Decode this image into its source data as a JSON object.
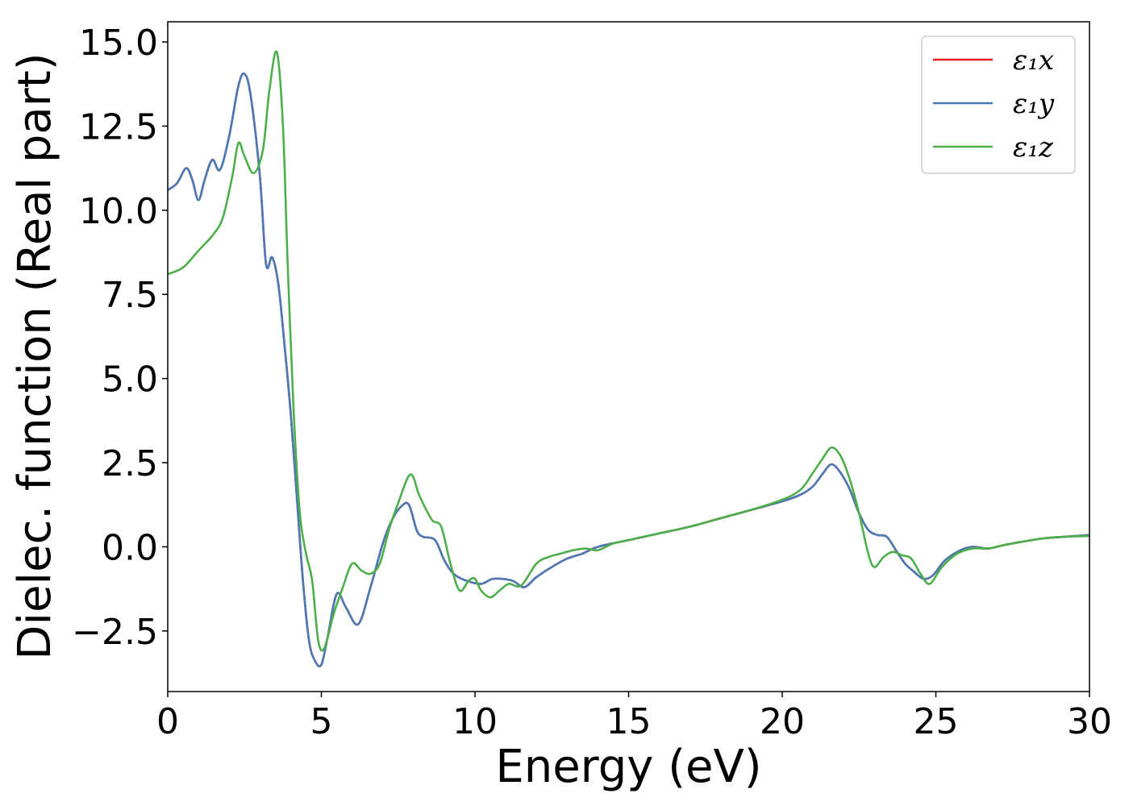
{
  "chart_data": {
    "type": "line",
    "xlabel": "Energy (eV)",
    "ylabel": "Dielec. function (Real part)",
    "xlim": [
      0,
      30
    ],
    "ylim": [
      -4.3,
      15.6
    ],
    "x_ticks": [
      0,
      5,
      10,
      15,
      20,
      25,
      30
    ],
    "y_ticks": [
      -2.5,
      0.0,
      2.5,
      5.0,
      7.5,
      10.0,
      12.5,
      15.0
    ],
    "x_tick_labels": [
      "0",
      "5",
      "10",
      "15",
      "20",
      "25",
      "30"
    ],
    "y_tick_labels": [
      "−2.5",
      "0.0",
      "2.5",
      "5.0",
      "7.5",
      "10.0",
      "12.5",
      "15.0"
    ],
    "grid": false,
    "legend_position": "top-right",
    "series": [
      {
        "name": "ε₁x",
        "color": "#e41a1c",
        "x": [
          0,
          0.3,
          0.6,
          0.8,
          1.0,
          1.2,
          1.45,
          1.7,
          2.0,
          2.3,
          2.5,
          2.7,
          3.0,
          3.2,
          3.4,
          3.6,
          3.8,
          4.0,
          4.2,
          4.4,
          4.6,
          4.8,
          5.0,
          5.2,
          5.5,
          5.8,
          6.2,
          6.6,
          7.0,
          7.3,
          7.6,
          7.85,
          8.1,
          8.3,
          8.7,
          9.0,
          9.3,
          9.7,
          10.2,
          10.6,
          11.2,
          11.6,
          12.0,
          12.5,
          13.0,
          13.5,
          14.0,
          15.0,
          16.0,
          17.0,
          18.0,
          19.0,
          20.0,
          20.6,
          21.0,
          21.3,
          21.6,
          21.9,
          22.2,
          22.5,
          22.8,
          23.1,
          23.4,
          23.7,
          24.0,
          24.3,
          24.6,
          24.9,
          25.3,
          25.8,
          26.2,
          26.7,
          27.2,
          27.8,
          28.5,
          29.2,
          30.0
        ],
        "y": [
          10.6,
          10.8,
          11.25,
          10.9,
          10.3,
          10.9,
          11.5,
          11.2,
          12.2,
          13.7,
          14.05,
          13.4,
          11.0,
          8.4,
          8.6,
          7.8,
          6.0,
          4.0,
          1.5,
          -1.0,
          -2.8,
          -3.4,
          -3.5,
          -2.7,
          -1.4,
          -1.8,
          -2.3,
          -1.2,
          0.1,
          0.8,
          1.2,
          1.25,
          0.5,
          0.3,
          0.2,
          -0.4,
          -0.8,
          -1.0,
          -1.1,
          -0.95,
          -1.0,
          -1.2,
          -0.9,
          -0.6,
          -0.35,
          -0.2,
          0.0,
          0.2,
          0.4,
          0.6,
          0.85,
          1.1,
          1.35,
          1.55,
          1.8,
          2.15,
          2.45,
          2.2,
          1.7,
          1.0,
          0.5,
          0.35,
          0.3,
          -0.1,
          -0.5,
          -0.75,
          -0.95,
          -0.85,
          -0.4,
          -0.1,
          0.0,
          -0.05,
          0.05,
          0.15,
          0.25,
          0.3,
          0.35
        ]
      },
      {
        "name": "ε₁y",
        "color": "#4a7ab5",
        "x": [
          0,
          0.3,
          0.6,
          0.8,
          1.0,
          1.2,
          1.45,
          1.7,
          2.0,
          2.3,
          2.5,
          2.7,
          3.0,
          3.2,
          3.4,
          3.6,
          3.8,
          4.0,
          4.2,
          4.4,
          4.6,
          4.8,
          5.0,
          5.2,
          5.5,
          5.8,
          6.2,
          6.6,
          7.0,
          7.3,
          7.6,
          7.85,
          8.1,
          8.3,
          8.7,
          9.0,
          9.3,
          9.7,
          10.2,
          10.6,
          11.2,
          11.6,
          12.0,
          12.5,
          13.0,
          13.5,
          14.0,
          15.0,
          16.0,
          17.0,
          18.0,
          19.0,
          20.0,
          20.6,
          21.0,
          21.3,
          21.6,
          21.9,
          22.2,
          22.5,
          22.8,
          23.1,
          23.4,
          23.7,
          24.0,
          24.3,
          24.6,
          24.9,
          25.3,
          25.8,
          26.2,
          26.7,
          27.2,
          27.8,
          28.5,
          29.2,
          30.0
        ],
        "y": [
          10.6,
          10.8,
          11.25,
          10.9,
          10.3,
          10.9,
          11.5,
          11.2,
          12.2,
          13.7,
          14.05,
          13.4,
          11.0,
          8.4,
          8.6,
          7.8,
          6.0,
          4.0,
          1.5,
          -1.0,
          -2.8,
          -3.4,
          -3.5,
          -2.7,
          -1.4,
          -1.8,
          -2.3,
          -1.2,
          0.1,
          0.8,
          1.2,
          1.25,
          0.5,
          0.3,
          0.2,
          -0.4,
          -0.8,
          -1.0,
          -1.1,
          -0.95,
          -1.0,
          -1.2,
          -0.9,
          -0.6,
          -0.35,
          -0.2,
          0.0,
          0.2,
          0.4,
          0.6,
          0.85,
          1.1,
          1.35,
          1.55,
          1.8,
          2.15,
          2.45,
          2.2,
          1.7,
          1.0,
          0.5,
          0.35,
          0.3,
          -0.1,
          -0.5,
          -0.75,
          -0.95,
          -0.85,
          -0.4,
          -0.1,
          0.0,
          -0.05,
          0.05,
          0.15,
          0.25,
          0.3,
          0.35
        ]
      },
      {
        "name": "ε₁z",
        "color": "#4daf4a",
        "x": [
          0,
          0.5,
          1.0,
          1.5,
          1.8,
          2.1,
          2.3,
          2.5,
          2.8,
          3.1,
          3.3,
          3.55,
          3.75,
          3.9,
          4.1,
          4.3,
          4.5,
          4.7,
          4.9,
          5.1,
          5.4,
          5.7,
          6.0,
          6.3,
          6.6,
          6.9,
          7.2,
          7.5,
          7.9,
          8.2,
          8.6,
          8.9,
          9.2,
          9.5,
          9.8,
          10.0,
          10.2,
          10.5,
          10.8,
          11.1,
          11.5,
          12.0,
          12.4,
          12.8,
          13.2,
          13.6,
          14.0,
          14.5,
          15.0,
          16.0,
          17.0,
          18.0,
          19.0,
          20.0,
          20.6,
          21.0,
          21.3,
          21.6,
          21.9,
          22.2,
          22.5,
          22.8,
          23.0,
          23.3,
          23.6,
          23.9,
          24.2,
          24.5,
          24.8,
          25.2,
          25.7,
          26.2,
          26.7,
          27.2,
          27.8,
          28.5,
          29.2,
          30.0
        ],
        "y": [
          8.1,
          8.3,
          8.8,
          9.3,
          9.8,
          11.0,
          12.0,
          11.6,
          11.1,
          11.8,
          13.5,
          14.7,
          12.5,
          8.5,
          4.0,
          1.0,
          -0.2,
          -1.0,
          -2.8,
          -3.0,
          -2.0,
          -1.2,
          -0.5,
          -0.7,
          -0.8,
          -0.5,
          0.5,
          1.3,
          2.15,
          1.5,
          0.8,
          0.6,
          -0.5,
          -1.3,
          -1.0,
          -0.95,
          -1.3,
          -1.5,
          -1.3,
          -1.1,
          -1.15,
          -0.5,
          -0.3,
          -0.2,
          -0.1,
          -0.05,
          -0.1,
          0.1,
          0.2,
          0.4,
          0.6,
          0.85,
          1.1,
          1.4,
          1.7,
          2.2,
          2.6,
          2.95,
          2.7,
          2.0,
          1.0,
          -0.2,
          -0.6,
          -0.3,
          -0.15,
          -0.25,
          -0.35,
          -0.8,
          -1.1,
          -0.6,
          -0.2,
          -0.05,
          -0.05,
          0.05,
          0.15,
          0.25,
          0.3,
          0.32
        ]
      }
    ]
  }
}
